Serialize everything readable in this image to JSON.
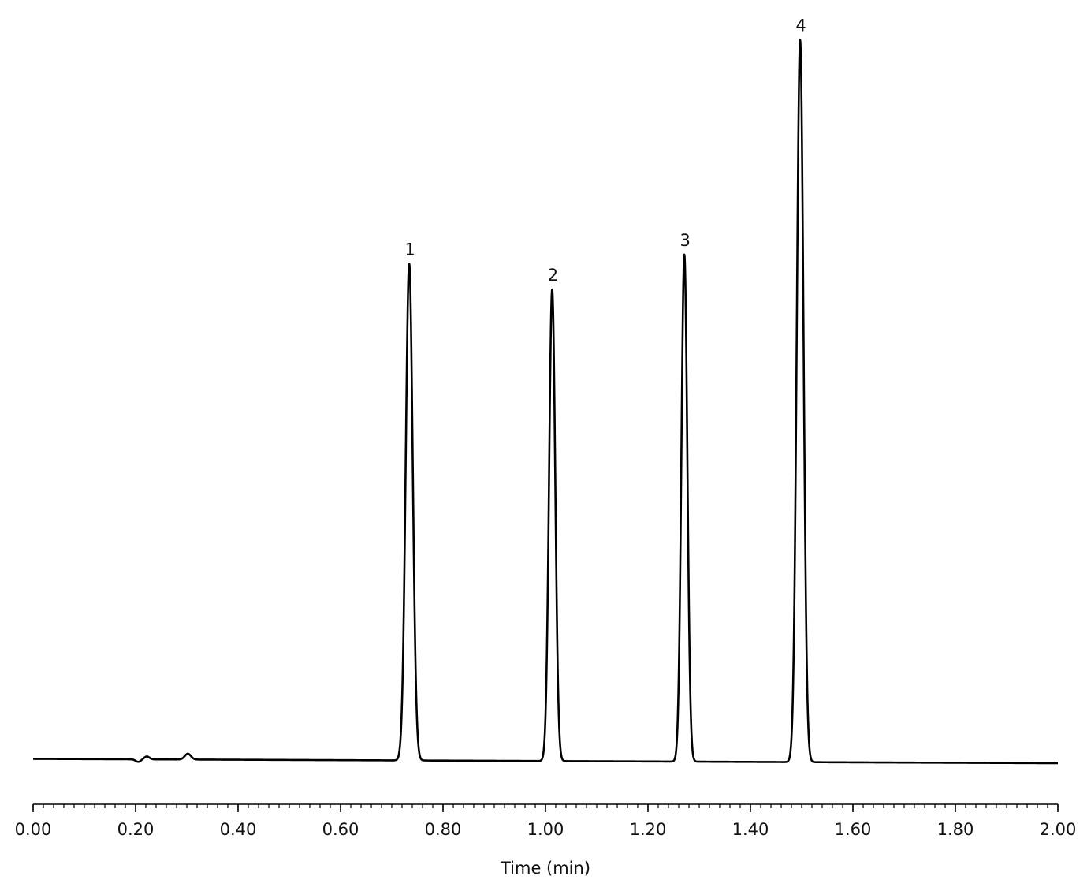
{
  "chart_data": {
    "type": "line",
    "title": "",
    "xlabel": "Time (min)",
    "ylabel": "",
    "xlim": [
      0,
      2
    ],
    "ylim": [
      0,
      100
    ],
    "grid": false,
    "x_ticks": [
      "0.00",
      "0.20",
      "0.40",
      "0.60",
      "0.80",
      "1.00",
      "1.20",
      "1.40",
      "1.60",
      "1.80",
      "2.00"
    ],
    "x_tick_values": [
      0,
      0.2,
      0.4,
      0.6,
      0.8,
      1.0,
      1.2,
      1.4,
      1.6,
      1.8,
      2.0
    ],
    "minor_tick_step": 0.02,
    "baseline": {
      "start": 0.6,
      "end": 0.0
    },
    "disturbances": [
      {
        "time": 0.205,
        "height": -0.35,
        "width": 0.005
      },
      {
        "time": 0.222,
        "height": 0.4,
        "width": 0.005
      },
      {
        "time": 0.302,
        "height": 0.8,
        "width": 0.006
      }
    ],
    "peaks": [
      {
        "label": "1",
        "time": 0.734,
        "height": 68.8,
        "width": 0.0068
      },
      {
        "label": "2",
        "time": 1.013,
        "height": 65.3,
        "width": 0.006
      },
      {
        "label": "3",
        "time": 1.271,
        "height": 70.2,
        "width": 0.0058
      },
      {
        "label": "4",
        "time": 1.497,
        "height": 100.0,
        "width": 0.0065
      }
    ]
  },
  "colors": {
    "trace": "#000000",
    "axis": "#000000",
    "text": "#111111"
  }
}
